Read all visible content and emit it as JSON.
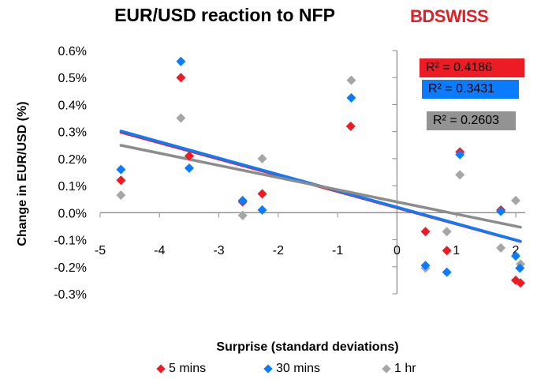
{
  "logo": {
    "text_a": "BD",
    "text_b": "SWISS"
  },
  "chart_data": {
    "type": "scatter",
    "title": "EUR/USD reaction to NFP",
    "xlabel": "Surprise (standard deviations)",
    "ylabel": "Change in EUR/USD  (%)",
    "xlim": [
      -5,
      2
    ],
    "ylim": [
      -0.3,
      0.6
    ],
    "xticks": [
      "-5",
      "-4",
      "-3",
      "-2",
      "-1",
      "0",
      "1",
      "2"
    ],
    "yticks": [
      "-0.3%",
      "-0.2%",
      "-0.1%",
      "0.0%",
      "0.1%",
      "0.2%",
      "0.3%",
      "0.4%",
      "0.5%",
      "0.6%"
    ],
    "grid": false,
    "legend_position": "bottom",
    "trendlines": "linear",
    "series": [
      {
        "name": "5 mins",
        "color": "#ed1c24",
        "r2": "R² = 0.4186",
        "x": [
          -4.65,
          -3.64,
          -3.5,
          -2.6,
          -2.27,
          -0.78,
          0.48,
          0.84,
          1.06,
          1.75,
          2.0,
          2.08
        ],
        "y": [
          0.12,
          0.5,
          0.21,
          0.04,
          0.07,
          0.32,
          -0.07,
          -0.14,
          0.225,
          0.01,
          -0.25,
          -0.26
        ]
      },
      {
        "name": "30 mins",
        "color": "#0a7cff",
        "r2": "R² = 0.3431",
        "x": [
          -4.65,
          -3.64,
          -3.5,
          -2.6,
          -2.27,
          -0.77,
          0.48,
          0.84,
          1.06,
          1.75,
          2.0,
          2.07
        ],
        "y": [
          0.16,
          0.56,
          0.165,
          0.045,
          0.01,
          0.425,
          -0.195,
          -0.22,
          0.215,
          0.005,
          -0.16,
          -0.205
        ]
      },
      {
        "name": "1 hr",
        "color": "#a6a6a6",
        "r2": "R² = 0.2603",
        "x": [
          -4.65,
          -3.64,
          -3.5,
          -2.6,
          -2.27,
          -0.77,
          0.48,
          0.84,
          1.06,
          1.75,
          2.0,
          2.08
        ],
        "y": [
          0.065,
          0.35,
          0.21,
          -0.01,
          0.2,
          0.49,
          -0.205,
          -0.07,
          0.14,
          -0.13,
          0.045,
          -0.19
        ]
      }
    ]
  }
}
